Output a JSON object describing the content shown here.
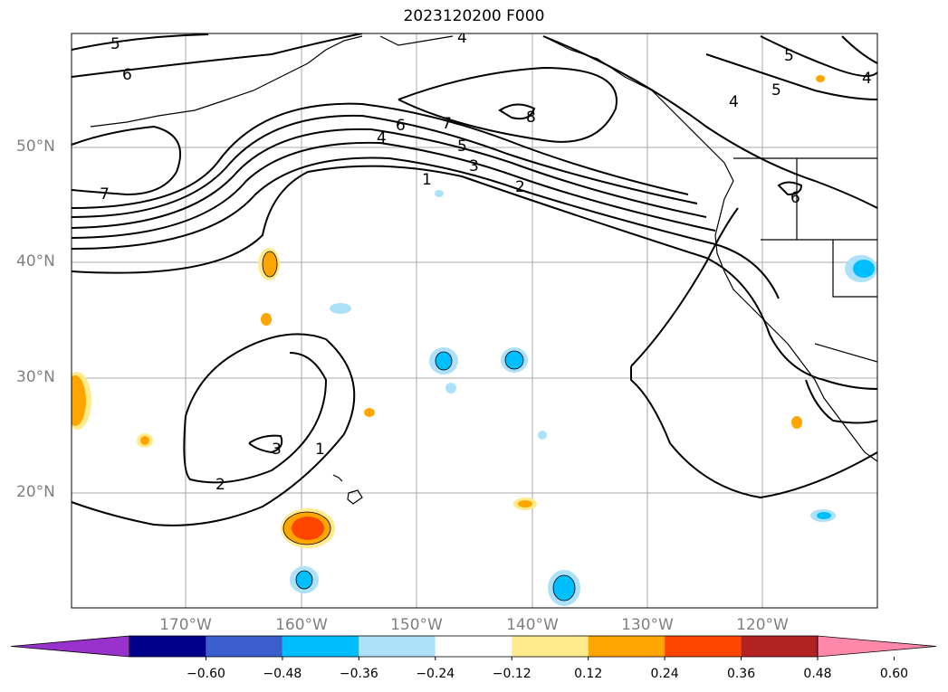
{
  "title": "2023120200 F000",
  "lat_labels": [
    "50°N",
    "40°N",
    "30°N",
    "20°N"
  ],
  "lon_labels": [
    "170°W",
    "160°W",
    "150°W",
    "140°W",
    "130°W",
    "120°W"
  ],
  "contour_labels": [
    "5",
    "6",
    "7",
    "4",
    "6",
    "7",
    "5",
    "4",
    "3",
    "1",
    "2",
    "8",
    "6",
    "5",
    "5",
    "4",
    "4",
    "3",
    "2",
    "1"
  ],
  "colorbar": {
    "ticks": [
      "−0.60",
      "−0.48",
      "−0.36",
      "−0.24",
      "−0.12",
      "0.12",
      "0.24",
      "0.36",
      "0.48",
      "0.60"
    ],
    "colors": [
      "#9932CC",
      "#00008B",
      "#3A5FCD",
      "#00BFFF",
      "#ADE1FA",
      "#FFFFFF",
      "#FFEB8C",
      "#FFA500",
      "#FF4500",
      "#B22222",
      "#FF88AA"
    ]
  },
  "colors": {
    "contour": "#000000",
    "grid": "#aaaaaa",
    "coast": "#000000"
  }
}
